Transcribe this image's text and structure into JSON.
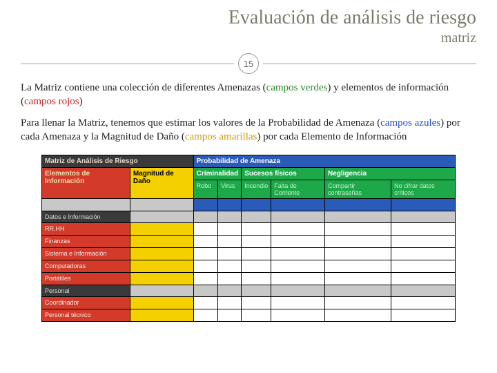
{
  "header": {
    "title": "Evaluación de análisis de riesgo",
    "subtitle": "matriz",
    "page_number": "15"
  },
  "paragraphs": {
    "p1_a": "La Matriz contiene una colección de diferentes Amenazas (",
    "p1_green": "campos verdes",
    "p1_b": ") y elementos de información (",
    "p1_red": "campos rojos",
    "p1_c": ")",
    "p2_a": "Para llenar la Matriz, tenemos que estimar los valores de la Probabilidad de Amenaza (",
    "p2_blue": "campos azules",
    "p2_b": ") por cada Amenaza y la Magnitud de Daño (",
    "p2_yellow": "campos amarillas",
    "p2_c": ") por cada Elemento de Información"
  },
  "matrix": {
    "top_left": "Matriz de Análisis de Riesgo",
    "top_right": "Probabilidad de Amenaza",
    "row1_left": "Elementos de Información",
    "row1_mag": "Magnitud de Daño",
    "threat_groups": [
      "Criminalidad",
      "Sucesos físicos",
      "Negligencia"
    ],
    "threats": [
      "Robo",
      "Virus",
      "Incendio",
      "Falta de Corriente",
      "Compartir contraseñas",
      "No cifrar datos críticos"
    ],
    "section": "Datos e Información",
    "rows": [
      "RR.HH",
      "Finanzas",
      "Sistema e Información",
      "Computadoras",
      "Portátiles",
      "Personal",
      "Coordinador",
      "Personal técnico"
    ]
  },
  "colors": {
    "title_grey": "#7a7a6a",
    "green": "#2a8a2a",
    "red": "#cc2222",
    "blue": "#2255cc",
    "yellow": "#cc9900",
    "hdr_dark": "#3a3a3a",
    "hdr_blue": "#2b5bb8",
    "hdr_red": "#d43a2a",
    "hdr_yellow": "#f5d000",
    "hdr_green": "#1da84a",
    "cell_grey": "#c8c8c8"
  }
}
